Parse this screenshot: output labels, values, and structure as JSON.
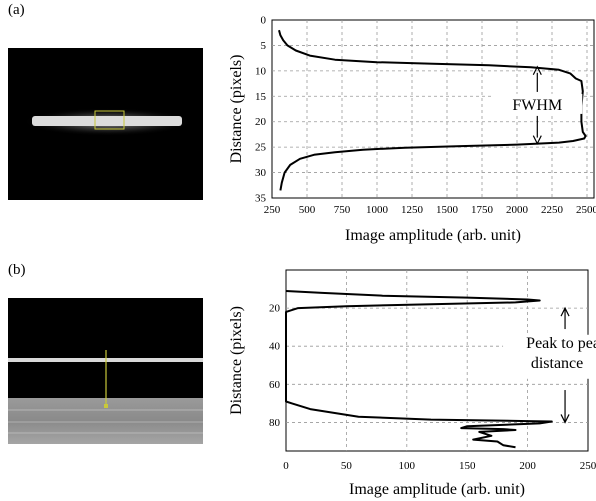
{
  "panels": [
    {
      "label": "(a)"
    },
    {
      "label": "(b)"
    }
  ],
  "chart_data": [
    {
      "type": "line",
      "xlabel": "Image amplitude (arb. unit)",
      "ylabel": "Distance (pixels)",
      "xlim": [
        250,
        2550
      ],
      "ylim": [
        35,
        0
      ],
      "y_inverted": true,
      "x_ticks": [
        250,
        500,
        750,
        1000,
        1250,
        1500,
        1750,
        2000,
        2250,
        2500
      ],
      "y_ticks": [
        0,
        5,
        10,
        15,
        20,
        25,
        30,
        35
      ],
      "grid": "dashed",
      "annotations": [
        {
          "text": "FWHM",
          "x": 1400,
          "y": 16.5
        }
      ],
      "series": [
        {
          "x": [
            300,
            310,
            330,
            360,
            420,
            520,
            700,
            1000,
            1400,
            1800,
            2100,
            2300,
            2380,
            2420,
            2460,
            2470,
            2460,
            2460,
            2470,
            2490,
            2480,
            2400,
            2300,
            2000,
            1600,
            1200,
            900,
            700,
            550,
            450,
            380,
            340,
            320,
            310
          ],
          "y": [
            2,
            3,
            4,
            5,
            6,
            7,
            7.8,
            8.3,
            8.6,
            8.9,
            9.3,
            9.8,
            10.5,
            11.5,
            12,
            14,
            17,
            20,
            22,
            22.8,
            23.3,
            23.8,
            24.1,
            24.5,
            24.8,
            25.1,
            25.5,
            26,
            26.5,
            27.3,
            28.5,
            30,
            32,
            33.5
          ]
        }
      ]
    },
    {
      "type": "line",
      "xlabel": "Image amplitude (arb. unit)",
      "ylabel": "Distance (pixels)",
      "xlim": [
        0,
        250
      ],
      "ylim": [
        95,
        0
      ],
      "y_inverted": true,
      "x_ticks": [
        0,
        50,
        100,
        150,
        200,
        250
      ],
      "y_ticks": [
        20,
        40,
        60,
        80
      ],
      "grid": "dashed",
      "annotations": [
        {
          "text": "Peak to peak distance",
          "x": 235,
          "y": 50
        }
      ],
      "series": [
        {
          "x": [
            0,
            30,
            80,
            150,
            200,
            210,
            190,
            120,
            50,
            10,
            0,
            0,
            0,
            0,
            0,
            0,
            0,
            0,
            0,
            5,
            20,
            60,
            120,
            170,
            200,
            220,
            210,
            150,
            145,
            180,
            190,
            160,
            170,
            155,
            175,
            180,
            190
          ],
          "y": [
            11,
            12,
            13.5,
            14.5,
            15.5,
            16,
            17,
            18,
            19,
            20,
            22,
            30,
            40,
            50,
            60,
            65,
            68,
            68.5,
            69,
            70,
            73,
            77,
            78.5,
            79,
            79.3,
            79.5,
            80.5,
            82,
            83,
            83.5,
            84,
            85,
            87,
            89,
            90,
            92,
            93
          ]
        }
      ]
    }
  ]
}
